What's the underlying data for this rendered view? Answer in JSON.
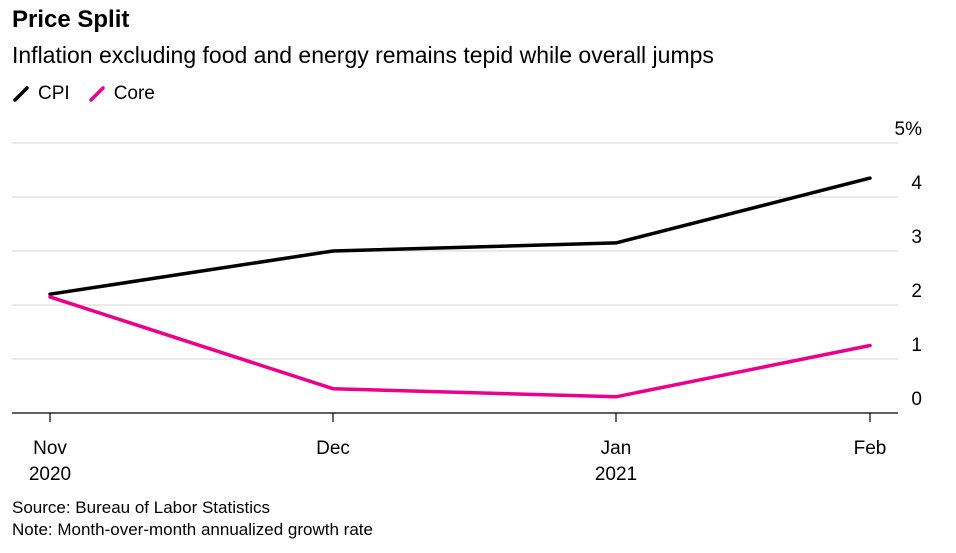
{
  "title": "Price Split",
  "subtitle": "Inflation excluding food and energy remains tepid while overall jumps",
  "source": "Source: Bureau of Labor Statistics",
  "note": "Note: Month-over-month annualized growth rate",
  "chart_data": {
    "type": "line",
    "x": [
      "Nov 2020",
      "Dec",
      "Jan 2021",
      "Feb"
    ],
    "x_tick_labels": [
      [
        "Nov",
        "2020"
      ],
      [
        "Dec"
      ],
      [
        "Jan",
        "2021"
      ],
      [
        "Feb"
      ]
    ],
    "y_ticks": [
      "0",
      "1",
      "2",
      "3",
      "4",
      "5%"
    ],
    "ylim": [
      0,
      5
    ],
    "grid": true,
    "legend_position": "top-left",
    "y_axis_side": "right",
    "series": [
      {
        "name": "CPI",
        "color": "#000000",
        "values": [
          2.2,
          3.0,
          3.15,
          4.35
        ]
      },
      {
        "name": "Core",
        "color": "#ec008c",
        "values": [
          2.15,
          0.45,
          0.3,
          1.25
        ]
      }
    ]
  }
}
